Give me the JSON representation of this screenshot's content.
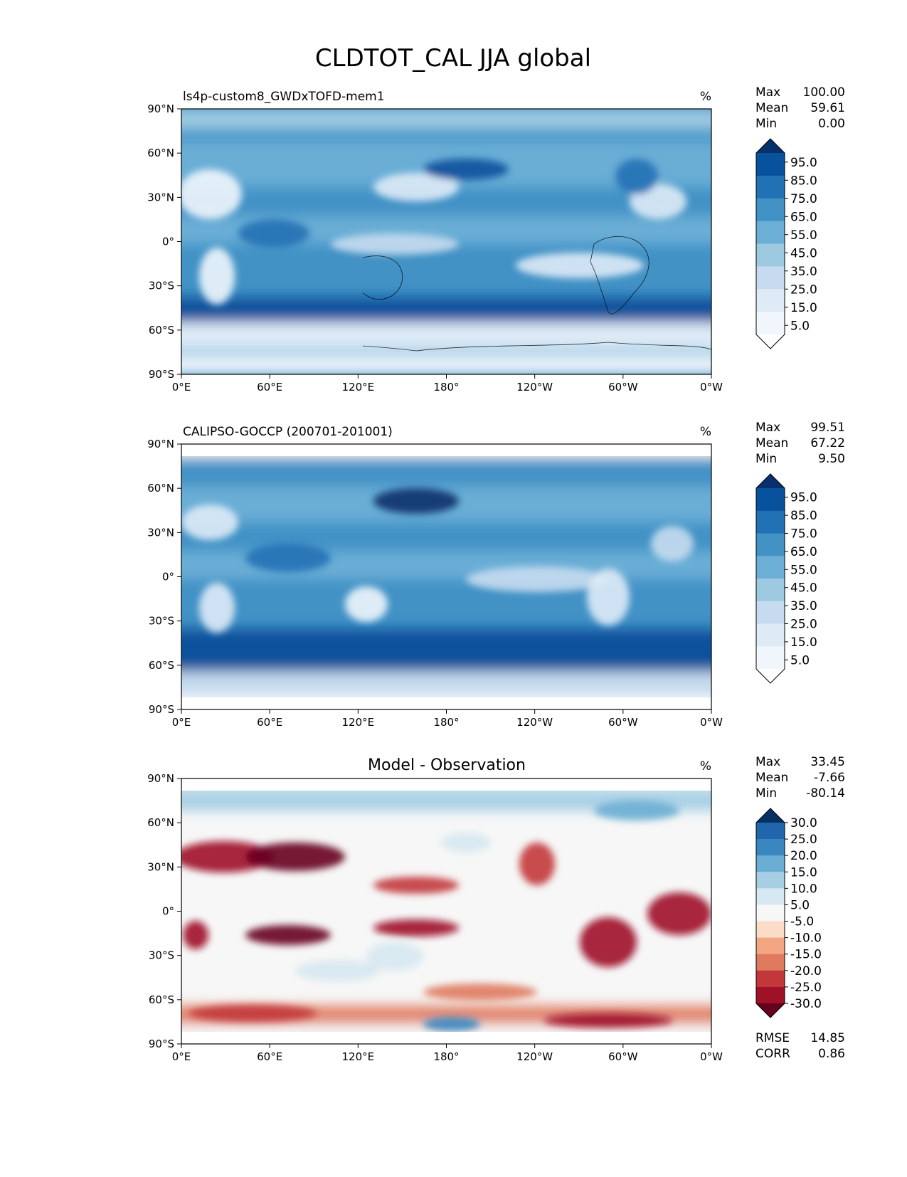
{
  "figure_title": "CLDTOT_CAL JJA global",
  "x_ticks": [
    "0°E",
    "60°E",
    "120°E",
    "180°",
    "120°W",
    "60°W",
    "0°W"
  ],
  "y_ticks": [
    "90°N",
    "60°N",
    "30°N",
    "0°",
    "30°S",
    "60°S",
    "90°S"
  ],
  "chart_data": [
    {
      "type": "heatmap",
      "title": "ls4p-custom8_GWDxTOFD-mem1",
      "units": "%",
      "stats": {
        "max_label": "Max",
        "max": "100.00",
        "mean_label": "Mean",
        "mean": "59.61",
        "min_label": "Min",
        "min": "0.00"
      },
      "xlim": [
        0,
        360
      ],
      "ylim": [
        -90,
        90
      ],
      "colorbar_levels": [
        "95.0",
        "85.0",
        "75.0",
        "65.0",
        "55.0",
        "45.0",
        "35.0",
        "25.0",
        "15.0",
        "5.0"
      ],
      "colormap": [
        "#08306b",
        "#08519c",
        "#2171b5",
        "#4292c6",
        "#6baed6",
        "#9ecae1",
        "#c6dbef",
        "#deebf7",
        "#f0f6fc",
        "#ffffff"
      ]
    },
    {
      "type": "heatmap",
      "title": "CALIPSO-GOCCP (200701-201001)",
      "units": "%",
      "stats": {
        "max_label": "Max",
        "max": "99.51",
        "mean_label": "Mean",
        "mean": "67.22",
        "min_label": "Min",
        "min": "9.50"
      },
      "xlim": [
        0,
        360
      ],
      "ylim": [
        -90,
        90
      ],
      "colorbar_levels": [
        "95.0",
        "85.0",
        "75.0",
        "65.0",
        "55.0",
        "45.0",
        "35.0",
        "25.0",
        "15.0",
        "5.0"
      ],
      "colormap": [
        "#08306b",
        "#08519c",
        "#2171b5",
        "#4292c6",
        "#6baed6",
        "#9ecae1",
        "#c6dbef",
        "#deebf7",
        "#f0f6fc",
        "#ffffff"
      ]
    },
    {
      "type": "heatmap",
      "title": "Model - Observation",
      "units": "%",
      "stats": {
        "max_label": "Max",
        "max": "33.45",
        "mean_label": "Mean",
        "mean": "-7.66",
        "min_label": "Min",
        "min": "-80.14"
      },
      "xlim": [
        0,
        360
      ],
      "ylim": [
        -90,
        90
      ],
      "colorbar_levels": [
        "30.0",
        "25.0",
        "20.0",
        "15.0",
        "10.0",
        "5.0",
        "-5.0",
        "-10.0",
        "-15.0",
        "-20.0",
        "-25.0",
        "-30.0"
      ],
      "colormap": [
        "#053061",
        "#2166ac",
        "#3a87c0",
        "#6aaed3",
        "#a6cfe4",
        "#d6e8f1",
        "#f7f7f7",
        "#fbdcc9",
        "#f4a582",
        "#e07a5f",
        "#c2383a",
        "#9e1127",
        "#67001f"
      ],
      "rmse_label": "RMSE",
      "rmse": "14.85",
      "corr_label": "CORR",
      "corr": "0.86"
    }
  ]
}
